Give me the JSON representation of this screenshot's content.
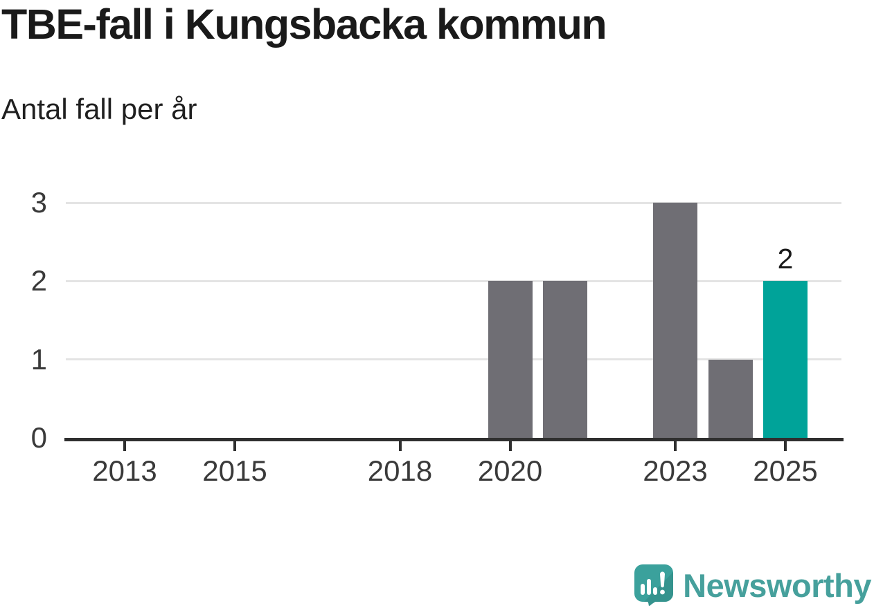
{
  "header": {
    "title": "TBE-fall i Kungsbacka kommun",
    "subtitle": "Antal fall per år"
  },
  "chart_data": {
    "type": "bar",
    "title": "TBE-fall i Kungsbacka kommun",
    "subtitle": "Antal fall per år",
    "xlabel": "",
    "ylabel": "Antal fall per år",
    "categories": [
      2012,
      2013,
      2014,
      2015,
      2016,
      2017,
      2018,
      2019,
      2020,
      2021,
      2022,
      2023,
      2024,
      2025
    ],
    "values": [
      0,
      0,
      0,
      0,
      0,
      0,
      0,
      0,
      2,
      2,
      0,
      3,
      1,
      2
    ],
    "ylim": [
      0,
      3
    ],
    "yticks": [
      0,
      1,
      2,
      3
    ],
    "xticks_shown": [
      2013,
      2015,
      2018,
      2020,
      2023,
      2025
    ],
    "highlight_category": 2025,
    "data_labels": [
      {
        "category": 2025,
        "text": "2"
      }
    ],
    "grid": "horizontal-only",
    "legend": "none",
    "bar_color": "#6f6e74",
    "highlight_color": "#00a399",
    "gridline_color": "#e4e4e4",
    "axis_color": "#2f2f2f"
  },
  "footer": {
    "brand": "Newsworthy",
    "logo_icon": "newsworthy-speech-bubble-barchart-icon",
    "brand_color": "#46a09c"
  }
}
